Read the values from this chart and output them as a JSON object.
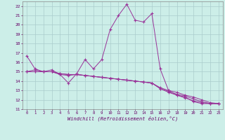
{
  "title": "",
  "xlabel": "Windchill (Refroidissement éolien,°C)",
  "ylabel": "",
  "background_color": "#cceee8",
  "grid_color": "#aacccc",
  "line_color": "#993399",
  "xlim": [
    -0.5,
    23.5
  ],
  "ylim": [
    11,
    22.5
  ],
  "xticks": [
    0,
    1,
    2,
    3,
    4,
    5,
    6,
    7,
    8,
    9,
    10,
    11,
    12,
    13,
    14,
    15,
    16,
    17,
    18,
    19,
    20,
    21,
    22,
    23
  ],
  "yticks": [
    11,
    12,
    13,
    14,
    15,
    16,
    17,
    18,
    19,
    20,
    21,
    22
  ],
  "series": [
    {
      "x": [
        0,
        1,
        2,
        3,
        4,
        5,
        6,
        7,
        8,
        9,
        10,
        11,
        12,
        13,
        14,
        15,
        16,
        17,
        18,
        19,
        20,
        21,
        22,
        23
      ],
      "y": [
        16.7,
        15.3,
        15.0,
        15.2,
        14.7,
        13.8,
        14.8,
        16.3,
        15.3,
        16.3,
        19.5,
        21.0,
        22.2,
        20.5,
        20.3,
        21.2,
        15.3,
        13.0,
        12.5,
        12.3,
        11.8,
        11.6,
        11.6,
        11.6
      ]
    },
    {
      "x": [
        0,
        1,
        2,
        3,
        4,
        5,
        6,
        7,
        8,
        9,
        10,
        11,
        12,
        13,
        14,
        15,
        16,
        17,
        18,
        19,
        20,
        21,
        22,
        23
      ],
      "y": [
        15.0,
        15.2,
        15.0,
        15.0,
        14.7,
        14.6,
        14.7,
        14.6,
        14.5,
        14.4,
        14.3,
        14.2,
        14.1,
        14.0,
        13.9,
        13.8,
        13.3,
        13.0,
        12.8,
        12.5,
        12.3,
        12.0,
        11.7,
        11.6
      ]
    },
    {
      "x": [
        0,
        1,
        2,
        3,
        4,
        5,
        6,
        7,
        8,
        9,
        10,
        11,
        12,
        13,
        14,
        15,
        16,
        17,
        18,
        19,
        20,
        21,
        22,
        23
      ],
      "y": [
        15.0,
        15.0,
        15.0,
        15.0,
        14.8,
        14.7,
        14.7,
        14.6,
        14.5,
        14.4,
        14.3,
        14.2,
        14.1,
        14.0,
        13.9,
        13.8,
        13.2,
        12.9,
        12.6,
        12.4,
        12.1,
        11.8,
        11.6,
        11.6
      ]
    },
    {
      "x": [
        0,
        1,
        2,
        3,
        4,
        5,
        6,
        7,
        8,
        9,
        10,
        11,
        12,
        13,
        14,
        15,
        16,
        17,
        18,
        19,
        20,
        21,
        22,
        23
      ],
      "y": [
        15.0,
        15.0,
        15.0,
        15.0,
        14.8,
        14.7,
        14.7,
        14.6,
        14.5,
        14.4,
        14.3,
        14.2,
        14.1,
        14.0,
        13.9,
        13.8,
        13.2,
        12.8,
        12.5,
        12.2,
        11.9,
        11.7,
        11.6,
        11.6
      ]
    }
  ]
}
